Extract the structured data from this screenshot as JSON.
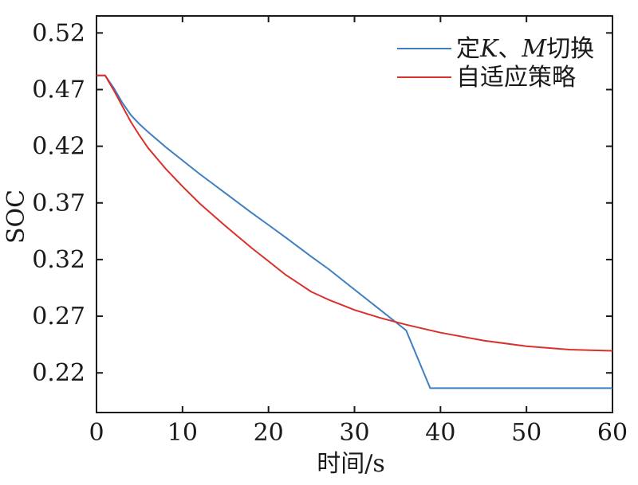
{
  "chart_data": {
    "type": "line",
    "xlabel": "时间/s",
    "ylabel": "SOC",
    "xlim": [
      0,
      60
    ],
    "ylim": [
      0.185,
      0.535
    ],
    "xticks": [
      0,
      10,
      20,
      30,
      40,
      50,
      60
    ],
    "xtick_labels": [
      "0",
      "10",
      "20",
      "30",
      "40",
      "50",
      "60"
    ],
    "yticks": [
      0.22,
      0.27,
      0.32,
      0.37,
      0.42,
      0.47,
      0.52
    ],
    "ytick_labels": [
      "0.22",
      "0.27",
      "0.32",
      "0.37",
      "0.42",
      "0.47",
      "0.52"
    ],
    "grid": false,
    "legend_position": "top-right",
    "series": [
      {
        "name": "定K、M切换",
        "name_parts": [
          "定",
          "K",
          "、",
          "M",
          "切换"
        ],
        "color": "#3e7fc1",
        "x": [
          0,
          1,
          2,
          3,
          4,
          5,
          6,
          8,
          10,
          12,
          15,
          18,
          20,
          22,
          25,
          27,
          30,
          33,
          36,
          38.8,
          39,
          45,
          50,
          55,
          60
        ],
        "y": [
          0.4825,
          0.4825,
          0.4715,
          0.4585,
          0.4475,
          0.4395,
          0.4325,
          0.4195,
          0.4075,
          0.3955,
          0.3785,
          0.3615,
          0.3505,
          0.3395,
          0.3225,
          0.3115,
          0.2935,
          0.2755,
          0.2575,
          0.2065,
          0.2065,
          0.2065,
          0.2065,
          0.2065,
          0.2065
        ]
      },
      {
        "name": "自适应策略",
        "color": "#d9302c",
        "x": [
          0,
          1,
          2,
          3,
          4,
          5,
          6,
          8,
          10,
          12,
          15,
          18,
          20,
          22,
          25,
          27,
          30,
          33,
          36,
          40,
          45,
          50,
          55,
          60
        ],
        "y": [
          0.4825,
          0.4825,
          0.4695,
          0.4555,
          0.4415,
          0.4295,
          0.4185,
          0.4005,
          0.3845,
          0.3695,
          0.3495,
          0.3305,
          0.3185,
          0.3065,
          0.2915,
          0.2845,
          0.2755,
          0.2685,
          0.2625,
          0.2555,
          0.2485,
          0.2435,
          0.2405,
          0.2395
        ]
      }
    ]
  }
}
